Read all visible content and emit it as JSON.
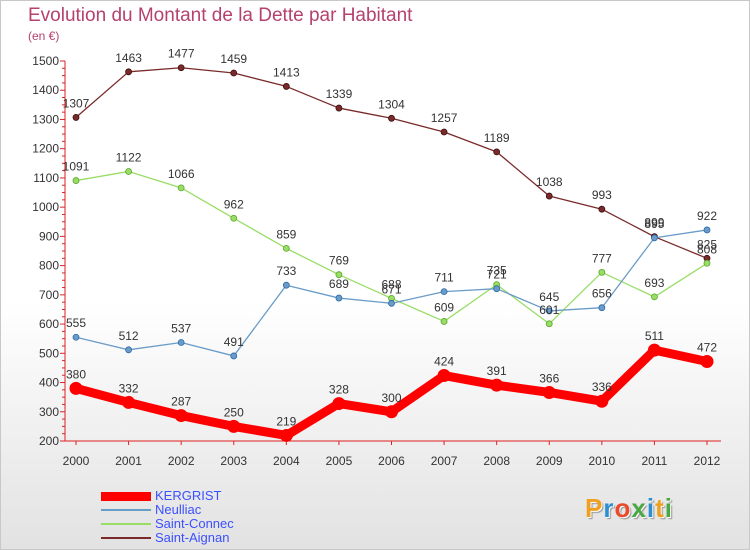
{
  "title": "Evolution du Montant de la Dette par Habitant",
  "unit_label": "(en €)",
  "logo": {
    "text": "Proxiti",
    "letters": [
      {
        "ch": "P",
        "color": "#f0a020"
      },
      {
        "ch": "r",
        "color": "#2d8fd0"
      },
      {
        "ch": "o",
        "color": "#e84a2a"
      },
      {
        "ch": "x",
        "color": "#49a842"
      },
      {
        "ch": "i",
        "color": "#2d8fd0"
      },
      {
        "ch": "t",
        "color": "#f0a020"
      },
      {
        "ch": "i",
        "color": "#49a842"
      }
    ]
  },
  "chart_data": {
    "type": "line",
    "title": "Evolution du Montant de la Dette par Habitant",
    "ylabel": "(en €)",
    "xlabel": "",
    "x": [
      "2000",
      "2001",
      "2002",
      "2003",
      "2004",
      "2005",
      "2006",
      "2007",
      "2008",
      "2009",
      "2010",
      "2011",
      "2012"
    ],
    "ylim": [
      200,
      1500
    ],
    "yticks": [
      200,
      300,
      400,
      500,
      600,
      700,
      800,
      900,
      1000,
      1100,
      1200,
      1300,
      1400,
      1500
    ],
    "grid": false,
    "legend": "bottom-left",
    "series": [
      {
        "name": "KERGRIST",
        "color": "#ff0000",
        "values": [
          380,
          332,
          287,
          250,
          219,
          328,
          300,
          424,
          391,
          366,
          336,
          511,
          472
        ]
      },
      {
        "name": "Neulliac",
        "color": "#6a9cc8",
        "values": [
          555,
          512,
          537,
          491,
          733,
          689,
          671,
          711,
          721,
          645,
          656,
          895,
          922
        ]
      },
      {
        "name": "Saint-Connec",
        "color": "#99dd66",
        "values": [
          1091,
          1122,
          1066,
          962,
          859,
          769,
          688,
          609,
          735,
          601,
          777,
          693,
          808
        ]
      },
      {
        "name": "Saint-Aignan",
        "color": "#7a2a2a",
        "values": [
          1307,
          1463,
          1477,
          1459,
          1413,
          1339,
          1304,
          1257,
          1189,
          1038,
          993,
          899,
          825
        ]
      }
    ]
  }
}
